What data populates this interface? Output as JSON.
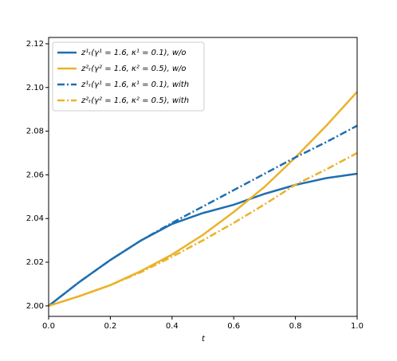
{
  "chart_data": {
    "type": "line",
    "xlabel": "t",
    "x": [
      0,
      0.1,
      0.2,
      0.3,
      0.4,
      0.5,
      0.6,
      0.7,
      0.8,
      0.9,
      1.0
    ],
    "series": [
      {
        "name": "z¹ₜ(γ¹ = 1.6, κ¹ = 0.1), w/o",
        "color": "#1f6fb2",
        "dash": "solid",
        "values": [
          2.0,
          2.011,
          2.021,
          2.03,
          2.0375,
          2.0425,
          2.0463,
          2.0513,
          2.0554,
          2.0585,
          2.0605
        ]
      },
      {
        "name": "z²ₜ(γ² = 1.6, κ² = 0.5), w/o",
        "color": "#ebb22a",
        "dash": "solid",
        "values": [
          2.0,
          2.0045,
          2.0095,
          2.016,
          2.0235,
          2.0325,
          2.043,
          2.0545,
          2.068,
          2.0825,
          2.098
        ]
      },
      {
        "name": "z¹ₜ(γ¹ = 1.6, κ¹ = 0.1), with",
        "color": "#1f6fb2",
        "dash": "dashdot",
        "values": [
          2.0,
          2.011,
          2.021,
          2.03,
          2.038,
          2.0455,
          2.053,
          2.0605,
          2.068,
          2.075,
          2.0825
        ]
      },
      {
        "name": "z²ₜ(γ² = 1.6, κ² = 0.5), with",
        "color": "#ebb22a",
        "dash": "dashdot",
        "values": [
          2.0,
          2.0045,
          2.0095,
          2.0155,
          2.0225,
          2.03,
          2.038,
          2.0465,
          2.0555,
          2.0625,
          2.07
        ]
      }
    ],
    "xlim": [
      0,
      1
    ],
    "xticks": [
      {
        "value": 0,
        "label": "0.0"
      },
      0.2,
      0.4,
      0.6,
      0.8,
      {
        "value": 1,
        "label": "1.0"
      }
    ],
    "ylim": [
      1.9952,
      2.1229
    ],
    "yticks": [
      {
        "value": 2,
        "label": "2.00"
      },
      2.02,
      2.04,
      2.06,
      2.08,
      {
        "value": 2.1,
        "label": "2.10"
      },
      2.12
    ],
    "legend": "upper left"
  }
}
